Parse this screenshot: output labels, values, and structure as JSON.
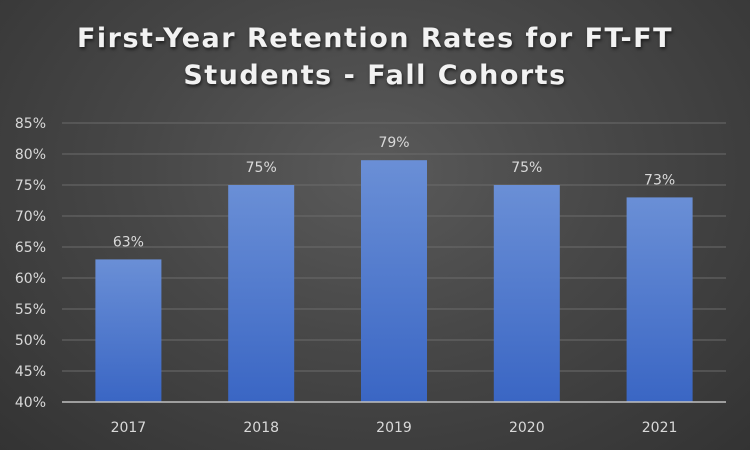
{
  "chart_data": {
    "type": "bar",
    "title_lines": [
      "First-Year Retention Rates for FT-FT",
      "Students - Fall Cohorts"
    ],
    "categories": [
      "2017",
      "2018",
      "2019",
      "2020",
      "2021"
    ],
    "values": [
      63,
      75,
      79,
      75,
      73
    ],
    "data_labels": [
      "63%",
      "75%",
      "79%",
      "75%",
      "73%"
    ],
    "ylim": [
      40,
      85
    ],
    "yticks": [
      40,
      45,
      50,
      55,
      60,
      65,
      70,
      75,
      80,
      85
    ],
    "ytick_labels": [
      "40%",
      "45%",
      "50%",
      "55%",
      "60%",
      "65%",
      "70%",
      "75%",
      "80%",
      "85%"
    ],
    "xlabel": "",
    "ylabel": "",
    "grid": true,
    "legend": "none",
    "colors": {
      "bar_top": "#6a8fd6",
      "bar_bottom": "#3a66c4",
      "grid": "#6b6b6b",
      "axis": "#bfbfbf",
      "text": "#d9d9d9"
    }
  }
}
